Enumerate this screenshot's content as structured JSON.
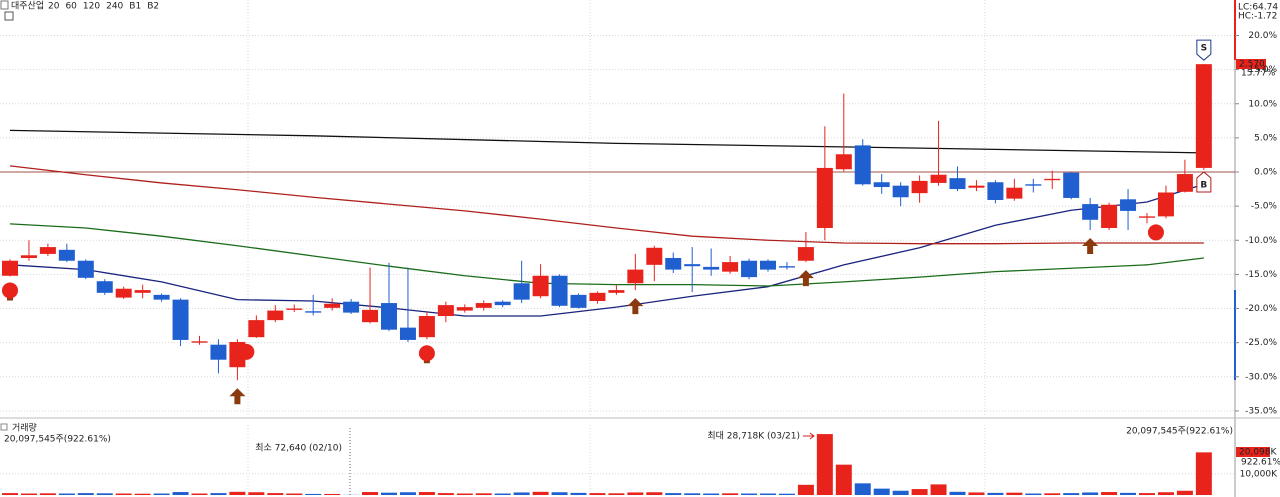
{
  "chart_data": [
    {
      "type": "candlestick",
      "title": "대주산업",
      "up_color": "#e8231c",
      "down_color": "#1f5fd0",
      "open": [
        -15.2,
        -12.6,
        -12,
        -11.4,
        -13,
        -16,
        -18.4,
        -17.7,
        -18,
        -18.7,
        -25,
        -25.3,
        -28.6,
        -24.2,
        -21.7,
        -20.2,
        -20.4,
        -19.9,
        -19,
        -22,
        -19.2,
        -22.8,
        -24.2,
        -21.1,
        -20.3,
        -19.9,
        -19,
        -16.3,
        -18.2,
        -15.2,
        -18,
        -18.9,
        -17.7,
        -16.3,
        -13.6,
        -12.6,
        -13.5,
        -13.9,
        -14.6,
        -13,
        -13,
        -13.8,
        -13,
        -8.2,
        0.4,
        3.9,
        -1.5,
        -2,
        -3.1,
        -1.6,
        -0.9,
        -2.3,
        -1.5,
        -3.9,
        -1.8,
        -1.2,
        -0.1,
        -4.7,
        -8.2,
        -4,
        -6.7,
        -6.5,
        -2.9,
        0.6
      ],
      "high": [
        -12.8,
        -10,
        -10.5,
        -10.5,
        -12.8,
        -15.7,
        -16.8,
        -16.5,
        -17.8,
        -18.5,
        -24,
        -24.5,
        -24.5,
        -21,
        -19.5,
        -19.4,
        -18,
        -18.5,
        -18.6,
        -14,
        -13.3,
        -14,
        -20.5,
        -19,
        -19.4,
        -18.8,
        -18.8,
        -13,
        -13.5,
        -15,
        -17.8,
        -17.5,
        -16.6,
        -12,
        -10.8,
        -11.8,
        -11,
        -11.2,
        -12.3,
        -12.7,
        -12.8,
        -13.2,
        -8.8,
        6.7,
        11.5,
        4.8,
        -0.3,
        -1.5,
        -0.5,
        7.5,
        0.8,
        -1.2,
        -1.2,
        -1,
        -1,
        0.2,
        0,
        -3.8,
        -4.5,
        -2.5,
        -6,
        -2,
        1.8,
        15.8
      ],
      "low": [
        -15.3,
        -13,
        -12.3,
        -13.2,
        -15.7,
        -18,
        -18.6,
        -18.5,
        -19,
        -25.5,
        -25.3,
        -29.5,
        -30.5,
        -24.3,
        -22,
        -20.5,
        -21,
        -20.3,
        -20.8,
        -22.2,
        -23.3,
        -24.9,
        -24.5,
        -22,
        -20.6,
        -20.3,
        -19.8,
        -19.2,
        -18.5,
        -19.8,
        -20,
        -19.3,
        -18,
        -17.3,
        -16,
        -14.8,
        -17.6,
        -15.2,
        -14.9,
        -15.7,
        -14.6,
        -14.3,
        -13.2,
        -10,
        0.1,
        -2,
        -3.2,
        -5,
        -4.5,
        -2,
        -2.8,
        -2.8,
        -4.6,
        -4.2,
        -3,
        -2.5,
        -4,
        -8.5,
        -8.5,
        -8.5,
        -7.5,
        -6.8,
        -3,
        0.3
      ],
      "close": [
        -13,
        -12.2,
        -11,
        -13,
        -15.5,
        -17.7,
        -17.1,
        -17.3,
        -18.7,
        -24.6,
        -24.8,
        -27.5,
        -24.9,
        -21.7,
        -20.3,
        -20,
        -20.6,
        -19.3,
        -20.6,
        -20.2,
        -23.1,
        -24.6,
        -21.1,
        -19.5,
        -19.8,
        -19.2,
        -19.5,
        -18.7,
        -15.2,
        -19.6,
        -19.9,
        -17.7,
        -17.3,
        -14.3,
        -11.1,
        -14.3,
        -13.8,
        -14.3,
        -13.2,
        -15.4,
        -14.3,
        -14,
        -11,
        0.6,
        2.6,
        -1.8,
        -2.2,
        -3.7,
        -1.3,
        -0.4,
        -2.5,
        -2,
        -4.1,
        -2.3,
        -2,
        -1,
        -3.8,
        -7,
        -4.8,
        -5.7,
        -6.5,
        -3,
        -0.3,
        15.8
      ],
      "moving_averages": [
        {
          "name": "20",
          "color": "#1a237e",
          "x": [
            0,
            4,
            8,
            12,
            16,
            20,
            24,
            28,
            32,
            36,
            40,
            44,
            48,
            52,
            56,
            60,
            63
          ],
          "values": [
            -13.6,
            -14.3,
            -16.1,
            -18.7,
            -18.9,
            -19.9,
            -21.1,
            -21.1,
            -19.8,
            -18.2,
            -16.8,
            -13.6,
            -11.1,
            -7.8,
            -5.6,
            -4.4,
            -1.8
          ]
        },
        {
          "name": "60",
          "color": "#1b6b1b",
          "x": [
            0,
            4,
            8,
            12,
            16,
            20,
            24,
            28,
            32,
            36,
            40,
            44,
            48,
            52,
            56,
            60,
            63
          ],
          "values": [
            -7.6,
            -8.2,
            -9.4,
            -10.8,
            -12.3,
            -13.8,
            -15.2,
            -16.3,
            -16.5,
            -16.5,
            -16.7,
            -16.1,
            -15.4,
            -14.6,
            -14.1,
            -13.6,
            -12.6
          ]
        },
        {
          "name": "120",
          "color": "#b0201c",
          "x": [
            0,
            4,
            8,
            12,
            16,
            20,
            24,
            28,
            32,
            36,
            40,
            44,
            48,
            52,
            56,
            60,
            63
          ],
          "values": [
            0.9,
            -0.4,
            -1.6,
            -2.6,
            -3.7,
            -4.7,
            -5.7,
            -6.9,
            -8.2,
            -9.4,
            -10,
            -10.4,
            -10.5,
            -10.5,
            -10.4,
            -10.4,
            -10.4
          ]
        },
        {
          "name": "240",
          "color": "#111111",
          "x": [
            0,
            16,
            32,
            48,
            63
          ],
          "values": [
            6.1,
            5.3,
            4.2,
            3.5,
            2.8
          ]
        }
      ],
      "legend_extra": [
        "B1",
        "B2"
      ],
      "buy_arrows": [
        0,
        12,
        22,
        33,
        42,
        57
      ],
      "signal_circles": [
        0,
        13,
        22,
        61
      ],
      "sell_marker": {
        "index": 63,
        "label": "S"
      },
      "buy_marker": {
        "index": 63,
        "label": "B"
      },
      "ylim": [
        -35.6,
        25.2
      ],
      "yticks": [
        {
          "value": 20,
          "label": "20.0%"
        },
        {
          "value": 15,
          "label": "15.0%"
        },
        {
          "value": 10,
          "label": "10.0%"
        },
        {
          "value": 5,
          "label": "5.0%"
        },
        {
          "value": 0,
          "label": "0.0%"
        },
        {
          "value": -5,
          "label": "-5.0%"
        },
        {
          "value": -10,
          "label": "-10.0%"
        },
        {
          "value": -15,
          "label": "-15.0%"
        },
        {
          "value": -20,
          "label": "-20.0%"
        },
        {
          "value": -25,
          "label": "-25.0%"
        },
        {
          "value": -30,
          "label": "-30.0%"
        },
        {
          "value": -35,
          "label": "-35.0%"
        }
      ],
      "right_labels": [
        "LC:64.74",
        "HC:-1.72"
      ],
      "last_price": "2,570",
      "last_change": "15.77%"
    },
    {
      "type": "bar",
      "title": "거래량",
      "values": [
        900,
        700,
        800,
        700,
        900,
        800,
        700,
        600,
        700,
        1400,
        700,
        900,
        1500,
        1300,
        900,
        700,
        500,
        500,
        72.64,
        1400,
        1100,
        1300,
        1400,
        900,
        700,
        800,
        700,
        1200,
        1500,
        1300,
        1000,
        900,
        800,
        1200,
        1300,
        900,
        800,
        700,
        800,
        700,
        700,
        600,
        4800,
        28718,
        14300,
        5500,
        3000,
        2000,
        2800,
        5000,
        1500,
        1200,
        1000,
        1100,
        700,
        800,
        900,
        1200,
        1400,
        1000,
        900,
        1300,
        2000,
        20097.545
      ],
      "ylim": [
        0,
        33000
      ],
      "yticks": [
        {
          "value": 10000,
          "label": "10,000K"
        }
      ],
      "last_volume": "20,097,545주(922.61%)",
      "min_label": "최소 72,640 (02/10)",
      "max_label": "최대 28,718K (03/21)",
      "last_volume_short": "20,098K",
      "last_volume_pct": "922.61%"
    }
  ]
}
